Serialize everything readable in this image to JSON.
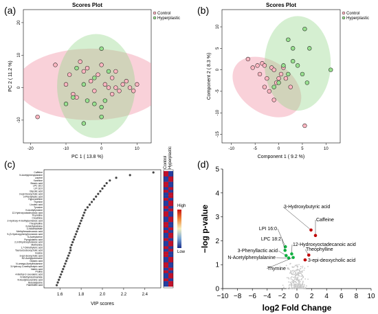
{
  "panel_labels": [
    "(a)",
    "(b)",
    "(c)",
    "(d)"
  ],
  "colors": {
    "control": "#ffb6c1",
    "hyperplastic": "#98e08f",
    "control_ellipse": "rgba(240,140,160,0.40)",
    "hyperplastic_ellipse": "rgba(150,215,140,0.40)",
    "volcano_up": "#c00000",
    "volcano_down": "#10b040",
    "volcano_ns": "#c8c8c8"
  },
  "chart_data": [
    {
      "id": "a",
      "type": "scatter",
      "title": "Scores Plot",
      "xlabel": "PC 1 ( 13.8 %)",
      "ylabel": "PC 2 ( 11.2 %)",
      "xlim": [
        -22,
        14
      ],
      "ylim": [
        -17,
        24
      ],
      "xticks": [
        -20,
        -10,
        0,
        10
      ],
      "yticks": [
        -10,
        0,
        10,
        20
      ],
      "legend": [
        "Control",
        "Hyperplastic"
      ],
      "legend_position": "top-right",
      "series": [
        {
          "name": "Control",
          "points": [
            [
              -18,
              -9
            ],
            [
              -13,
              7
            ],
            [
              -10,
              1
            ],
            [
              -9,
              4
            ],
            [
              -8,
              -2
            ],
            [
              -7,
              -3
            ],
            [
              -6,
              8
            ],
            [
              -5,
              5
            ],
            [
              -4,
              6
            ],
            [
              -3,
              2
            ],
            [
              -2,
              -1
            ],
            [
              -1,
              4
            ],
            [
              0,
              7
            ],
            [
              1,
              1
            ],
            [
              2,
              0
            ],
            [
              3,
              3
            ],
            [
              3,
              -2
            ],
            [
              4,
              5
            ],
            [
              4,
              0
            ],
            [
              5,
              -1
            ],
            [
              6,
              1
            ],
            [
              7,
              2
            ],
            [
              8,
              0
            ],
            [
              9,
              -1
            ],
            [
              10,
              1
            ]
          ]
        },
        {
          "name": "Hyperplastic",
          "points": [
            [
              -10,
              -5
            ],
            [
              -8,
              -3
            ],
            [
              -7,
              6
            ],
            [
              -5,
              1
            ],
            [
              -5,
              -11
            ],
            [
              -4,
              -4
            ],
            [
              -2,
              3
            ],
            [
              -2,
              -5
            ],
            [
              0,
              12
            ],
            [
              0,
              -6
            ],
            [
              0,
              -9
            ],
            [
              1,
              -4
            ],
            [
              2,
              5
            ]
          ]
        }
      ],
      "ellipses": [
        {
          "group": "Control",
          "center": [
            -3,
            1
          ],
          "half_axes": [
            21,
            11
          ]
        },
        {
          "group": "Hyperplastic",
          "center": [
            -1.5,
            0.5
          ],
          "half_axes": [
            11,
            16
          ]
        }
      ]
    },
    {
      "id": "b",
      "type": "scatter",
      "title": "Scores Plot",
      "xlabel": "Component 1 ( 9.2 %)",
      "ylabel": "Component 2 ( 8.3 %)",
      "xlim": [
        -12,
        13
      ],
      "ylim": [
        -17,
        14
      ],
      "xticks": [
        -10,
        -5,
        0,
        5,
        10
      ],
      "yticks": [
        -15,
        -10,
        -5,
        0,
        5,
        10
      ],
      "legend": [
        "Control",
        "Hyperplastic"
      ],
      "legend_position": "top-right",
      "series": [
        {
          "name": "Control",
          "points": [
            [
              -6.5,
              2.5
            ],
            [
              -5.5,
              0.5
            ],
            [
              -4.5,
              1
            ],
            [
              -4,
              -1
            ],
            [
              -3.5,
              1.5
            ],
            [
              -3,
              -4
            ],
            [
              -3,
              1
            ],
            [
              -2.5,
              -2
            ],
            [
              -2,
              -5
            ],
            [
              -1.5,
              0.5
            ],
            [
              -1,
              -7
            ],
            [
              -1,
              0
            ],
            [
              -0.5,
              -3
            ],
            [
              0,
              -2
            ],
            [
              0.5,
              -1
            ],
            [
              1,
              0.5
            ],
            [
              1.5,
              -2
            ],
            [
              2.5,
              -4
            ],
            [
              5.5,
              -13
            ]
          ]
        },
        {
          "name": "Hyperplastic",
          "points": [
            [
              -1,
              -4
            ],
            [
              0,
              -3
            ],
            [
              1,
              1
            ],
            [
              2,
              -1
            ],
            [
              2,
              7
            ],
            [
              3,
              5
            ],
            [
              3,
              2
            ],
            [
              4,
              1
            ],
            [
              5,
              -1
            ],
            [
              5.5,
              9.5
            ],
            [
              6,
              -3
            ],
            [
              6.5,
              5
            ],
            [
              11,
              0
            ]
          ]
        }
      ],
      "ellipses": [
        {
          "group": "Control",
          "center": [
            -2.5,
            -4
          ],
          "half_axes": [
            8,
            6
          ],
          "rotation_deg": 35
        },
        {
          "group": "Hyperplastic",
          "center": [
            4,
            1.5
          ],
          "half_axes": [
            7,
            11
          ]
        }
      ]
    },
    {
      "id": "c",
      "type": "scatter",
      "xlabel": "VIP scores",
      "xlim": [
        1.45,
        2.55
      ],
      "xticks": [
        1.6,
        1.8,
        2.0,
        2.2,
        2.4
      ],
      "heatmap_columns": [
        "Control",
        "Hyperplastic"
      ],
      "colorbar_labels": [
        "High",
        "Low"
      ],
      "features": [
        {
          "name": "Caffeine",
          "vip": 2.48
        },
        {
          "name": "N-Acetylphenylalanine",
          "vip": 2.26
        },
        {
          "name": "Laurine",
          "vip": 2.13
        },
        {
          "name": "Xanthine",
          "vip": 2.07
        },
        {
          "name": "Stearic acid",
          "vip": 2.04
        },
        {
          "name": "LPC 18:2",
          "vip": 2.02
        },
        {
          "name": "LPI 16:0",
          "vip": 2.0
        },
        {
          "name": "Glycolic acid",
          "vip": 1.98
        },
        {
          "name": "3-epi-Deoxycholic acid",
          "vip": 1.96
        },
        {
          "name": "3-Phenyllactic acid",
          "vip": 1.94
        },
        {
          "name": "Hypoxanthine",
          "vip": 1.92
        },
        {
          "name": "Thymine",
          "vip": 1.9
        },
        {
          "name": "Linoleic acid",
          "vip": 1.88
        },
        {
          "name": "Tyrosine",
          "vip": 1.86
        },
        {
          "name": "N-Acetyltyrosine",
          "vip": 1.84
        },
        {
          "name": "12-Hydroxyoctadecanoic acid",
          "vip": 1.83
        },
        {
          "name": "Thymidine",
          "vip": 1.82
        },
        {
          "name": "Creatinine",
          "vip": 1.81
        },
        {
          "name": "2-Hydroxy-4-methylpentanoic acid",
          "vip": 1.8
        },
        {
          "name": "Theophylline",
          "vip": 1.79
        },
        {
          "name": "N-Methylalanine",
          "vip": 1.78
        },
        {
          "name": "3-Indoleacetate",
          "vip": 1.77
        },
        {
          "name": "Methylhexadecanoic acid",
          "vip": 1.76
        },
        {
          "name": "9-(3-Hydroxyphenyl)nonanoic acid",
          "vip": 1.75
        },
        {
          "name": "N-Acetylserine",
          "vip": 1.74
        },
        {
          "name": "Pyroglutamic acid",
          "vip": 1.73
        },
        {
          "name": "2,3-Dihydroxybutanoic acid",
          "vip": 1.72
        },
        {
          "name": "Methionine",
          "vip": 1.71
        },
        {
          "name": "1,7-Dimethyluric acid",
          "vip": 1.7
        },
        {
          "name": "Tauroursodeoxycholic acid",
          "vip": 1.7
        },
        {
          "name": "Inosine",
          "vip": 1.69
        },
        {
          "name": "3-epi-deoxycholic acid",
          "vip": 1.68
        },
        {
          "name": "N2-Acetylputrescine",
          "vip": 1.67
        },
        {
          "name": "Glutaric acid",
          "vip": 1.66
        },
        {
          "name": "N-omega-Acetylhistamine",
          "vip": 1.65
        },
        {
          "name": "3-Hydroxy-3-methylbutyric acid",
          "vip": 1.64
        },
        {
          "name": "Valeric acid",
          "vip": 1.63
        },
        {
          "name": "Proline",
          "vip": 1.62
        },
        {
          "name": "4-Methyl-2-oxovaleric acid",
          "vip": 1.61
        },
        {
          "name": "N-Methylnicotinamide",
          "vip": 1.6
        },
        {
          "name": "N-Acetylneuraminic acid",
          "vip": 1.59
        },
        {
          "name": "Butyrylglycine",
          "vip": 1.58
        },
        {
          "name": "Palmitoleic acid",
          "vip": 1.57
        }
      ]
    },
    {
      "id": "d",
      "type": "scatter",
      "xlabel": "log2 Fold Change",
      "ylabel": "−log p-value",
      "xlim": [
        -10,
        10
      ],
      "ylim": [
        0,
        5
      ],
      "xticks": [
        -10,
        -8,
        -6,
        -4,
        -2,
        0,
        2,
        4,
        6,
        8,
        10
      ],
      "yticks": [
        0,
        1,
        2,
        3,
        4,
        5
      ],
      "labeled_points": [
        {
          "name": "3-Hydroxybutyric acid",
          "x": 1.9,
          "y": 2.45,
          "group": "up"
        },
        {
          "name": "Caffeine",
          "x": 2.5,
          "y": 2.22,
          "group": "up"
        },
        {
          "name": "Theophylline",
          "x": 1.6,
          "y": 1.4,
          "group": "up"
        },
        {
          "name": "3-epi-deoxycholic acid",
          "x": 1.1,
          "y": 1.2,
          "group": "up"
        },
        {
          "name": "LPI 16:0",
          "x": -1.55,
          "y": 1.75,
          "group": "down"
        },
        {
          "name": "LPC 18:2",
          "x": -1.6,
          "y": 1.6,
          "group": "down"
        },
        {
          "name": "12-Hydroxyoctadecanoic acid",
          "x": -0.7,
          "y": 1.45,
          "group": "down"
        },
        {
          "name": "3-Phenyllactic acid",
          "x": -1.45,
          "y": 1.38,
          "group": "down"
        },
        {
          "name": "N-Acetylphenylalanine",
          "x": -1.1,
          "y": 1.28,
          "group": "down"
        },
        {
          "name": "Thymine",
          "x": -0.5,
          "y": 1.3,
          "group": "down"
        }
      ]
    }
  ]
}
